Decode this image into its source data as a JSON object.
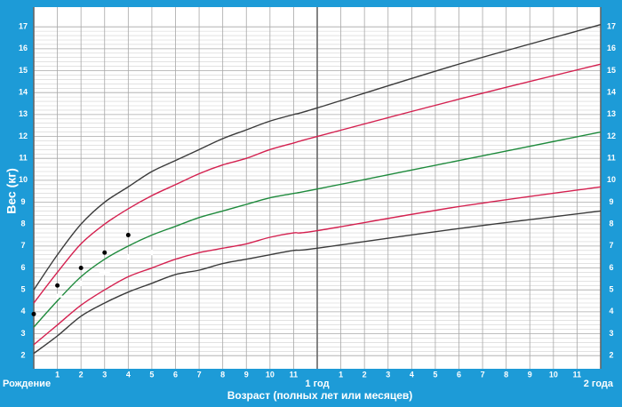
{
  "chart_data": {
    "type": "line",
    "y_label": "Вес (кг)",
    "x_label": "Возраст (полных лет или месяцев)",
    "xlim": [
      0,
      24
    ],
    "ylim": [
      1.4,
      17.9
    ],
    "xticks": [
      {
        "value": 0,
        "label": "Рождение"
      },
      1,
      2,
      3,
      4,
      5,
      6,
      7,
      8,
      9,
      10,
      11,
      {
        "value": 12,
        "label": "1 год"
      },
      {
        "value": 13,
        "label": "1"
      },
      {
        "value": 14,
        "label": "2"
      },
      {
        "value": 15,
        "label": "3"
      },
      {
        "value": 16,
        "label": "4"
      },
      {
        "value": 17,
        "label": "5"
      },
      {
        "value": 18,
        "label": "6"
      },
      {
        "value": 19,
        "label": "7"
      },
      {
        "value": 20,
        "label": "8"
      },
      {
        "value": 21,
        "label": "9"
      },
      {
        "value": 22,
        "label": "10"
      },
      {
        "value": 23,
        "label": "11"
      },
      {
        "value": 24,
        "label": "2 года"
      }
    ],
    "yticks": [
      2,
      3,
      4,
      5,
      6,
      7,
      8,
      9,
      10,
      11,
      12,
      13,
      14,
      15,
      16,
      17
    ],
    "grid": true,
    "x": [
      0,
      1,
      2,
      3,
      4,
      5,
      6,
      7,
      8,
      9,
      10,
      11,
      12,
      18,
      24
    ],
    "series": [
      {
        "color": "#3a3a3a",
        "values": [
          5.0,
          6.6,
          8.0,
          9.0,
          9.7,
          10.4,
          10.9,
          11.4,
          11.9,
          12.3,
          12.7,
          13.0,
          13.3,
          15.3,
          17.1
        ]
      },
      {
        "color": "#d4204f",
        "values": [
          4.4,
          5.8,
          7.1,
          8.0,
          8.7,
          9.3,
          9.8,
          10.3,
          10.7,
          11.0,
          11.4,
          11.7,
          12.0,
          13.7,
          15.3
        ]
      },
      {
        "color": "#1e8a3c",
        "values": [
          3.3,
          4.5,
          5.6,
          6.4,
          7.0,
          7.5,
          7.9,
          8.3,
          8.6,
          8.9,
          9.2,
          9.4,
          9.6,
          10.9,
          12.2
        ]
      },
      {
        "color": "#d4204f",
        "values": [
          2.5,
          3.4,
          4.3,
          5.0,
          5.6,
          6.0,
          6.4,
          6.7,
          6.9,
          7.1,
          7.4,
          7.6,
          7.7,
          8.8,
          9.7
        ]
      },
      {
        "color": "#3a3a3a",
        "values": [
          2.1,
          2.9,
          3.8,
          4.4,
          4.9,
          5.3,
          5.7,
          5.9,
          6.2,
          6.4,
          6.6,
          6.8,
          6.9,
          7.8,
          8.6
        ]
      }
    ],
    "markers": [
      {
        "color": "#000000",
        "marker": "dot",
        "x": [
          0,
          1,
          2,
          3,
          4
        ],
        "values": [
          3.9,
          5.2,
          6.0,
          6.7,
          7.5
        ]
      },
      {
        "color": "#ffffff",
        "marker": "cross",
        "x": [
          1,
          2,
          3,
          4,
          5
        ],
        "values": [
          4.7,
          5.3,
          5.8,
          6.5,
          6.7
        ]
      }
    ]
  }
}
